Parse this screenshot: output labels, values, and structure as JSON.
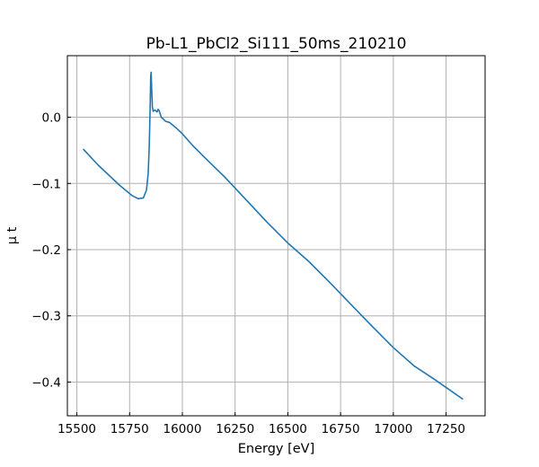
{
  "chart_data": {
    "type": "line",
    "title": "Pb-L1_PbCl2_Si111_50ms_210210",
    "xlabel": "Energy [eV]",
    "ylabel": "μ t",
    "xlim": [
      15455,
      17435
    ],
    "ylim": [
      -0.451,
      0.093
    ],
    "x_ticks": [
      15500,
      15750,
      16000,
      16250,
      16500,
      16750,
      17000,
      17250
    ],
    "x_tick_labels": [
      "15500",
      "15750",
      "16000",
      "16250",
      "16500",
      "16750",
      "17000",
      "17250"
    ],
    "y_ticks": [
      0.0,
      -0.1,
      -0.2,
      -0.3,
      -0.4
    ],
    "y_tick_labels": [
      "0.0",
      "−0.1",
      "−0.2",
      "−0.3",
      "−0.4"
    ],
    "grid": true,
    "ticks_direction": "in",
    "line_color": "#1f77b4",
    "series": [
      {
        "color": "#1f77b4",
        "x": [
          15530,
          15600,
          15700,
          15760,
          15790,
          15815,
          15830,
          15838,
          15843,
          15847,
          15850,
          15852,
          15855,
          15858,
          15862,
          15870,
          15880,
          15885,
          15890,
          15900,
          15920,
          15940,
          15970,
          16000,
          16050,
          16100,
          16200,
          16300,
          16400,
          16500,
          16600,
          16700,
          16800,
          16900,
          17000,
          17100,
          17200,
          17330
        ],
        "y": [
          -0.048,
          -0.072,
          -0.102,
          -0.118,
          -0.123,
          -0.122,
          -0.11,
          -0.085,
          -0.045,
          0.01,
          0.062,
          0.068,
          0.04,
          0.015,
          0.009,
          0.011,
          0.008,
          0.012,
          0.01,
          0.0,
          -0.006,
          -0.008,
          -0.016,
          -0.025,
          -0.043,
          -0.059,
          -0.09,
          -0.124,
          -0.158,
          -0.19,
          -0.218,
          -0.25,
          -0.283,
          -0.316,
          -0.348,
          -0.376,
          -0.397,
          -0.426
        ]
      }
    ]
  }
}
